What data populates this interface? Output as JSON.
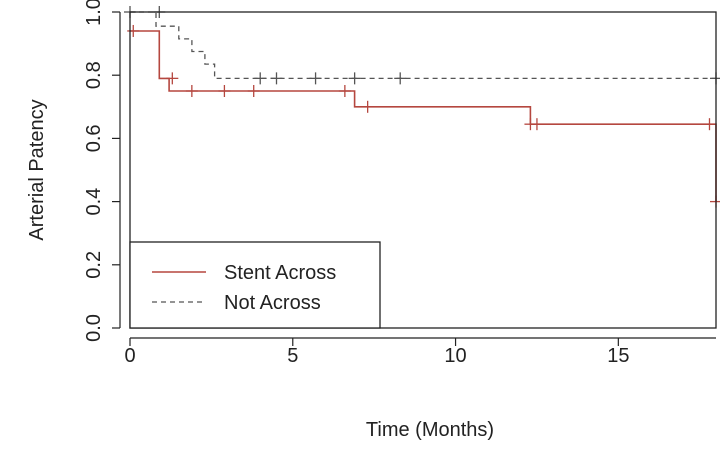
{
  "chart_data": {
    "type": "line",
    "subtype": "kaplan-meier-step",
    "title": "",
    "xlabel": "Time (Months)",
    "ylabel": "Arterial Patency",
    "xlim": [
      0,
      18
    ],
    "ylim": [
      0.0,
      1.0
    ],
    "x_ticks": [
      0,
      5,
      10,
      15
    ],
    "x_tick_labels": [
      "0",
      "5",
      "10",
      "15"
    ],
    "y_ticks": [
      0.0,
      0.2,
      0.4,
      0.6,
      0.8,
      1.0
    ],
    "y_tick_labels": [
      "0.0",
      "0.2",
      "0.4",
      "0.6",
      "0.8",
      "1.0"
    ],
    "grid": false,
    "legend_position": "bottom-left",
    "series": [
      {
        "name": "Stent Across",
        "color": "#b5473f",
        "line_style": "solid",
        "steps": [
          [
            0,
            0.94
          ],
          [
            0.9,
            0.94
          ],
          [
            0.9,
            0.79
          ],
          [
            1.2,
            0.79
          ],
          [
            1.2,
            0.75
          ],
          [
            6.9,
            0.75
          ],
          [
            6.9,
            0.7
          ],
          [
            12.3,
            0.7
          ],
          [
            12.3,
            0.645
          ],
          [
            18.0,
            0.645
          ],
          [
            18.0,
            0.4
          ]
        ],
        "censored": [
          [
            0.1,
            0.94
          ],
          [
            1.3,
            0.79
          ],
          [
            1.9,
            0.75
          ],
          [
            2.9,
            0.75
          ],
          [
            3.8,
            0.75
          ],
          [
            6.6,
            0.75
          ],
          [
            7.3,
            0.7
          ],
          [
            12.3,
            0.645
          ],
          [
            12.5,
            0.645
          ],
          [
            17.8,
            0.645
          ],
          [
            18.0,
            0.4
          ]
        ]
      },
      {
        "name": "Not Across",
        "color": "#555555",
        "line_style": "dashed",
        "steps": [
          [
            0,
            1.0
          ],
          [
            0.8,
            1.0
          ],
          [
            0.8,
            0.955
          ],
          [
            1.5,
            0.955
          ],
          [
            1.5,
            0.915
          ],
          [
            1.9,
            0.915
          ],
          [
            1.9,
            0.875
          ],
          [
            2.3,
            0.875
          ],
          [
            2.3,
            0.835
          ],
          [
            2.6,
            0.835
          ],
          [
            2.6,
            0.79
          ],
          [
            18.0,
            0.79
          ]
        ],
        "censored": [
          [
            0.0,
            1.0
          ],
          [
            0.9,
            1.0
          ],
          [
            4.0,
            0.79
          ],
          [
            4.5,
            0.79
          ],
          [
            5.7,
            0.79
          ],
          [
            6.9,
            0.79
          ],
          [
            8.3,
            0.79
          ],
          [
            18.0,
            0.79
          ]
        ]
      }
    ]
  }
}
